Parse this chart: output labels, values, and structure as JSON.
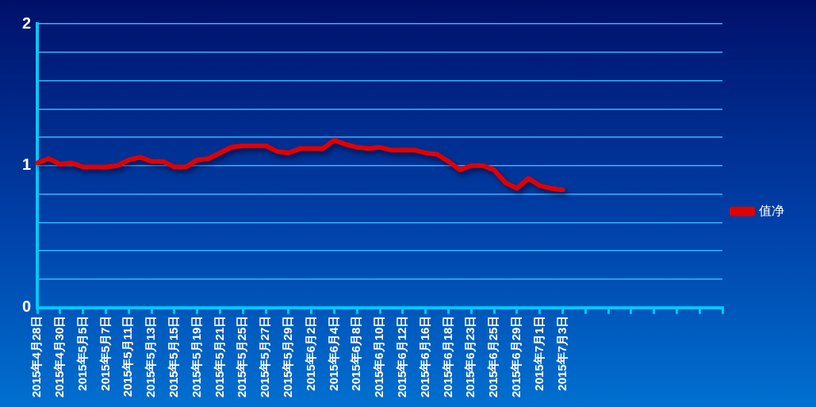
{
  "chart_data": {
    "type": "line",
    "categories": [
      "2015年4月28日",
      null,
      "2015年4月30日",
      null,
      "2015年5月5日",
      null,
      "2015年5月7日",
      null,
      "2015年5月11日",
      null,
      "2015年5月13日",
      null,
      "2015年5月15日",
      null,
      "2015年5月19日",
      null,
      "2015年5月21日",
      null,
      "2015年5月25日",
      null,
      "2015年5月27日",
      null,
      "2015年5月29日",
      null,
      "2015年6月2日",
      null,
      "2015年6月4日",
      null,
      "2015年6月8日",
      null,
      "2015年6月10日",
      null,
      "2015年6月12日",
      null,
      "2015年6月16日",
      null,
      "2015年6月18日",
      null,
      "2015年6月23日",
      null,
      "2015年6月25日",
      null,
      "2015年6月29日",
      null,
      "2015年7月1日",
      null,
      "2015年7月3日",
      null,
      null,
      null,
      null,
      null,
      null,
      null,
      null,
      null,
      null,
      null,
      null,
      null,
      null
    ],
    "series": [
      {
        "name": "值净",
        "color": "#e00000",
        "values": [
          1.02,
          1.05,
          1.01,
          1.02,
          0.99,
          0.99,
          0.99,
          1.0,
          1.04,
          1.06,
          1.03,
          1.03,
          0.99,
          0.99,
          1.04,
          1.05,
          1.09,
          1.13,
          1.14,
          1.14,
          1.14,
          1.1,
          1.09,
          1.12,
          1.12,
          1.12,
          1.18,
          1.15,
          1.13,
          1.12,
          1.13,
          1.11,
          1.11,
          1.11,
          1.09,
          1.08,
          1.03,
          0.97,
          1.0,
          1.0,
          0.97,
          0.88,
          0.84,
          0.91,
          0.86,
          0.84,
          0.83,
          null,
          null,
          null,
          null,
          null,
          null,
          null,
          null,
          null,
          null,
          null,
          null,
          null,
          null
        ]
      }
    ],
    "ylim": [
      0,
      2
    ],
    "yticks": [
      0,
      {
        "value": 0.2,
        "label": null
      },
      {
        "value": 0.4,
        "label": null
      },
      {
        "value": 0.6,
        "label": null
      },
      {
        "value": 0.8,
        "label": null
      },
      1,
      {
        "value": 1.2,
        "label": null
      },
      {
        "value": 1.4,
        "label": null
      },
      {
        "value": 1.6,
        "label": null
      },
      {
        "value": 1.8,
        "label": null
      },
      2
    ],
    "grid": "y",
    "legend": "right",
    "marker": "none",
    "line_style": "solid"
  }
}
